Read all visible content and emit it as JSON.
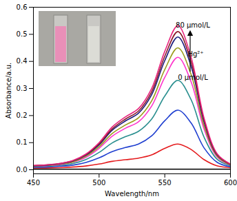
{
  "chart_data": {
    "type": "line",
    "x_label": "Wavelength/nm",
    "y_label": "Absorbance/a.u.",
    "annotations": [
      "80 μmol/L",
      "Hg²⁺",
      "0 μmol/L"
    ],
    "x": [
      450,
      460,
      470,
      480,
      490,
      500,
      510,
      520,
      530,
      540,
      550,
      560,
      570,
      580,
      590,
      600
    ],
    "series": [
      {
        "color": "#000000",
        "values": [
          0.002,
          0.002,
          0.002,
          0.002,
          0.002,
          0.002,
          0.002,
          0.002,
          0.002,
          0.002,
          0.002,
          0.002,
          0.002,
          0.002,
          0.002,
          0.002
        ]
      },
      {
        "color": "#e41a1c",
        "values": [
          0.007,
          0.007,
          0.008,
          0.01,
          0.014,
          0.021,
          0.031,
          0.037,
          0.043,
          0.055,
          0.079,
          0.095,
          0.075,
          0.037,
          0.014,
          0.008
        ]
      },
      {
        "color": "#1f3fd0",
        "values": [
          0.009,
          0.01,
          0.013,
          0.017,
          0.027,
          0.044,
          0.067,
          0.082,
          0.095,
          0.125,
          0.181,
          0.22,
          0.173,
          0.08,
          0.027,
          0.011
        ]
      },
      {
        "color": "#2a8f8f",
        "values": [
          0.012,
          0.013,
          0.016,
          0.023,
          0.038,
          0.064,
          0.099,
          0.122,
          0.142,
          0.187,
          0.272,
          0.33,
          0.259,
          0.119,
          0.038,
          0.015
        ]
      },
      {
        "color": "#ff33cc",
        "values": [
          0.013,
          0.015,
          0.019,
          0.028,
          0.046,
          0.079,
          0.124,
          0.153,
          0.177,
          0.235,
          0.341,
          0.415,
          0.325,
          0.149,
          0.046,
          0.017
        ]
      },
      {
        "color": "#9a9a1a",
        "values": [
          0.014,
          0.016,
          0.021,
          0.029,
          0.05,
          0.085,
          0.134,
          0.165,
          0.192,
          0.254,
          0.37,
          0.45,
          0.352,
          0.161,
          0.05,
          0.018
        ]
      },
      {
        "color": "#1a1a7a",
        "values": [
          0.015,
          0.017,
          0.022,
          0.032,
          0.054,
          0.092,
          0.146,
          0.18,
          0.209,
          0.277,
          0.403,
          0.49,
          0.383,
          0.175,
          0.054,
          0.02
        ]
      },
      {
        "color": "#8b1a2a",
        "values": [
          0.015,
          0.018,
          0.023,
          0.033,
          0.056,
          0.096,
          0.151,
          0.187,
          0.217,
          0.288,
          0.419,
          0.51,
          0.399,
          0.182,
          0.056,
          0.02
        ]
      },
      {
        "color": "#e8237d",
        "values": [
          0.016,
          0.018,
          0.023,
          0.034,
          0.058,
          0.1,
          0.158,
          0.195,
          0.226,
          0.3,
          0.437,
          0.532,
          0.416,
          0.189,
          0.058,
          0.021
        ]
      }
    ],
    "xlim": [
      450,
      600
    ],
    "xticks": [
      450,
      500,
      550,
      600
    ],
    "ylim": [
      -0.015,
      0.6
    ],
    "yticks": [
      {
        "value": 0,
        "label": "0.0"
      },
      {
        "value": 0.1,
        "label": "0.1"
      },
      {
        "value": 0.2,
        "label": "0.2"
      },
      {
        "value": 0.3,
        "label": "0.3"
      },
      {
        "value": 0.4,
        "label": "0.4"
      },
      {
        "value": 0.5,
        "label": "0.5"
      },
      {
        "value": 0.6,
        "label": "0.6"
      }
    ],
    "grid": false
  }
}
